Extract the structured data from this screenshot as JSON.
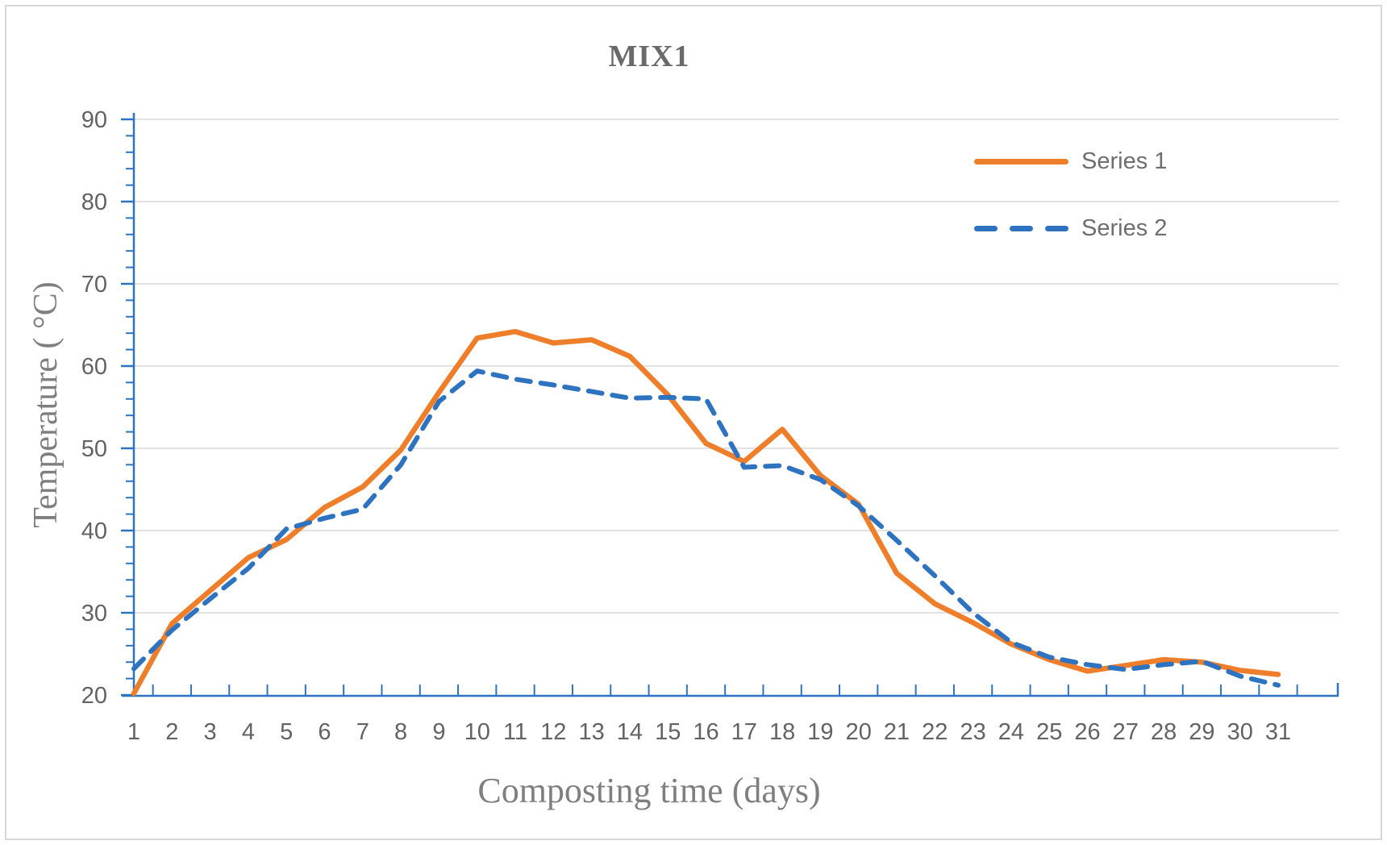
{
  "figure": {
    "background": "#ffffff",
    "border_color": "#d7d7d7"
  },
  "chart_data": {
    "type": "line",
    "title": "MIX1",
    "xlabel": "Composting time (days)",
    "ylabel": "Temperature ( °C)",
    "x": [
      1,
      2,
      3,
      4,
      5,
      6,
      7,
      8,
      9,
      10,
      11,
      12,
      13,
      14,
      15,
      16,
      17,
      18,
      19,
      20,
      21,
      22,
      23,
      24,
      25,
      26,
      27,
      28,
      29,
      30,
      31
    ],
    "xlim": [
      1,
      31
    ],
    "ylim": [
      20,
      90
    ],
    "yticks": [
      20,
      30,
      40,
      50,
      60,
      70,
      80,
      90
    ],
    "y_minor_tick_step": 2,
    "grid": "horizontal-major",
    "x_tick_style": "between-categories",
    "legend_position": "top-right-inside",
    "series": [
      {
        "name": "Series 1",
        "style": "solid",
        "color": "#ef7e2b",
        "values": [
          20.2,
          28.7,
          32.7,
          36.7,
          38.9,
          42.8,
          45.3,
          49.8,
          56.8,
          63.4,
          64.2,
          62.8,
          63.2,
          61.2,
          56.5,
          50.6,
          48.4,
          52.3,
          46.7,
          43.2,
          34.8,
          31.1,
          28.8,
          26.2,
          24.3,
          22.9,
          23.6,
          24.3,
          24.0,
          23.0,
          22.5
        ]
      },
      {
        "name": "Series 2",
        "style": "dashed",
        "color": "#2e73bf",
        "values": [
          23.2,
          27.9,
          31.7,
          35.4,
          40.2,
          41.5,
          42.6,
          48.0,
          55.7,
          59.4,
          58.4,
          57.7,
          56.9,
          56.1,
          56.2,
          56.0,
          47.7,
          47.9,
          46.2,
          43.0,
          38.8,
          34.5,
          30.0,
          26.4,
          24.6,
          23.7,
          23.1,
          23.7,
          24.1,
          22.3,
          21.2
        ]
      }
    ],
    "colors": {
      "axis": "#2e73bf",
      "gridline": "#d9d9d9",
      "tick_label": "#636363",
      "title_text": "#6a6a6a",
      "axis_title_text": "#7f7f7f"
    }
  }
}
